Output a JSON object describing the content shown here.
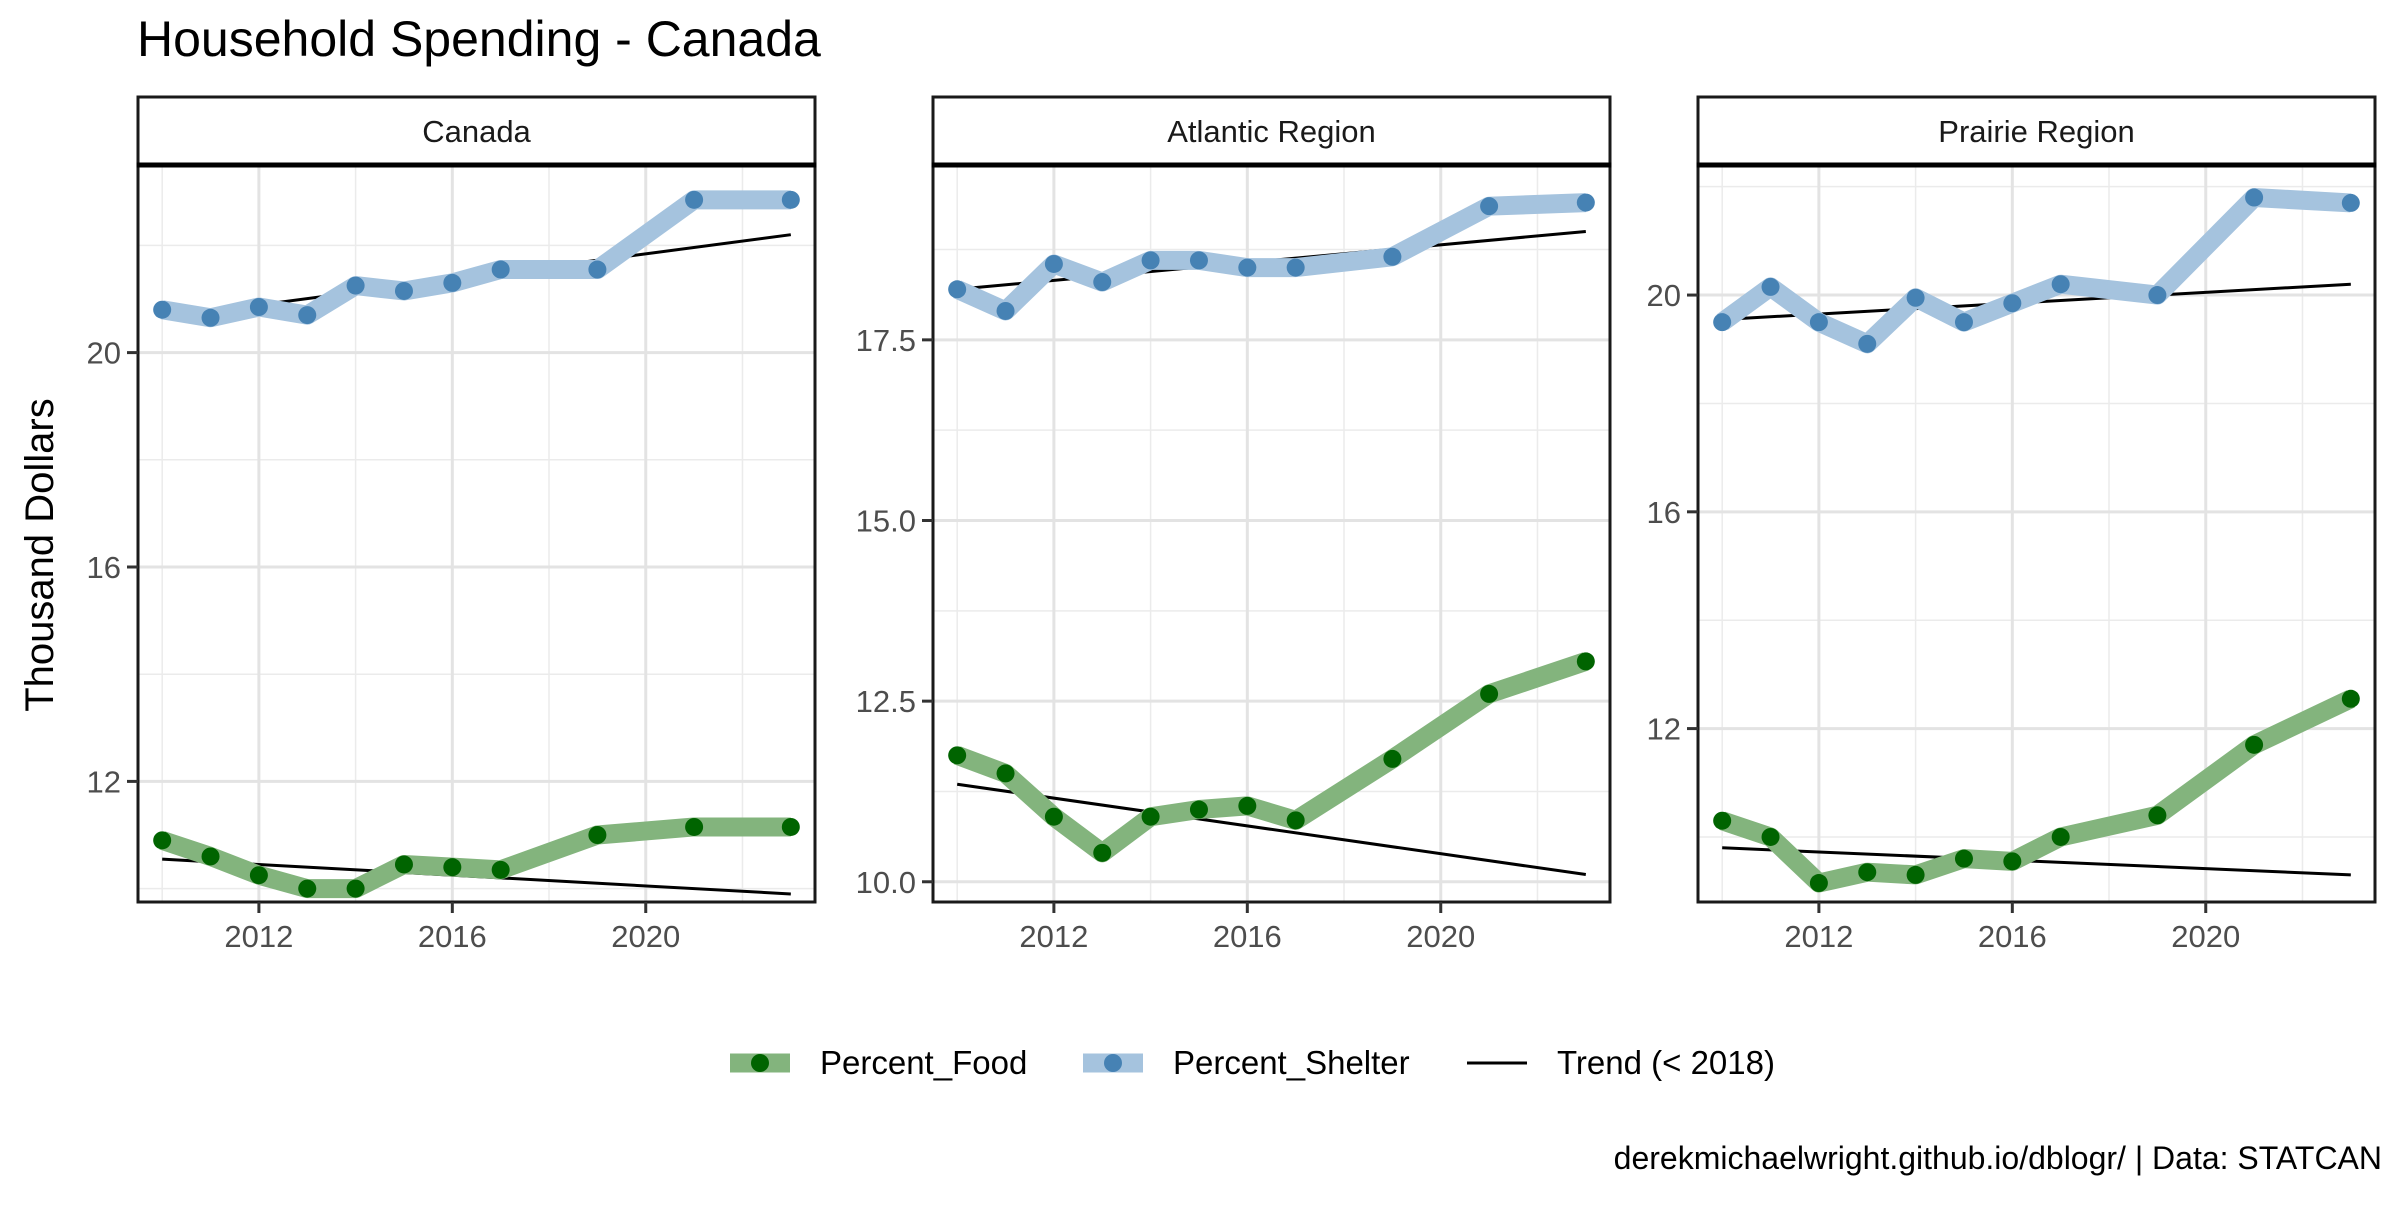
{
  "title": "Household Spending - Canada",
  "ylabel": "Thousand Dollars",
  "caption": "derekmichaelwright.github.io/dblogr/ | Data: STATCAN",
  "colors": {
    "food": "#006400",
    "food_band": "#83b47d",
    "shelter": "#4682b4",
    "shelter_band": "#a5c3de",
    "trend": "#000000"
  },
  "chart_data": {
    "type": "line",
    "xlim": [
      2009.5,
      2023.5
    ],
    "xticks": [
      2012,
      2016,
      2020
    ],
    "x": [
      2010,
      2011,
      2012,
      2013,
      2014,
      2015,
      2016,
      2017,
      2019,
      2021,
      2023
    ],
    "legend": {
      "placement": "bottom",
      "entries": [
        {
          "key": "food",
          "label": "Percent_Food"
        },
        {
          "key": "shelter",
          "label": "Percent_Shelter"
        },
        {
          "key": "trend",
          "label": "Trend (< 2018)"
        }
      ]
    },
    "panels": [
      {
        "name": "Canada",
        "ylim": [
          9.75,
          23.5
        ],
        "yticks": [
          12,
          16,
          20
        ],
        "series": [
          {
            "key": "food",
            "values": [
              10.9,
              10.6,
              10.25,
              10.0,
              10.0,
              10.45,
              10.4,
              10.35,
              11.0,
              11.15,
              11.15
            ]
          },
          {
            "key": "shelter",
            "values": [
              20.8,
              20.65,
              20.85,
              20.7,
              21.25,
              21.15,
              21.3,
              21.55,
              21.55,
              22.85,
              22.85
            ]
          }
        ],
        "trends": [
          {
            "key": "food",
            "x": [
              2010,
              2023
            ],
            "values": [
              10.55,
              9.9
            ]
          },
          {
            "key": "shelter",
            "x": [
              2010,
              2023
            ],
            "values": [
              20.65,
              22.2
            ]
          }
        ]
      },
      {
        "name": "Atlantic Region",
        "ylim": [
          9.72,
          19.92
        ],
        "yticks": [
          10.0,
          12.5,
          15.0,
          17.5
        ],
        "series": [
          {
            "key": "food",
            "values": [
              11.75,
              11.5,
              10.9,
              10.4,
              10.9,
              11.0,
              11.05,
              10.85,
              11.7,
              12.6,
              13.05
            ]
          },
          {
            "key": "shelter",
            "values": [
              18.2,
              17.9,
              18.55,
              18.3,
              18.6,
              18.6,
              18.5,
              18.5,
              18.65,
              19.35,
              19.4
            ]
          }
        ],
        "trends": [
          {
            "key": "food",
            "x": [
              2010,
              2023
            ],
            "values": [
              11.35,
              10.1
            ]
          },
          {
            "key": "shelter",
            "x": [
              2010,
              2023
            ],
            "values": [
              18.2,
              19.0
            ]
          }
        ]
      },
      {
        "name": "Prairie Region",
        "ylim": [
          8.8,
          22.4
        ],
        "yticks": [
          12,
          16,
          20
        ],
        "series": [
          {
            "key": "food",
            "values": [
              10.3,
              10.0,
              9.15,
              9.35,
              9.3,
              9.6,
              9.55,
              10.0,
              10.4,
              11.7,
              12.55
            ]
          },
          {
            "key": "shelter",
            "values": [
              19.5,
              20.15,
              19.5,
              19.1,
              19.95,
              19.5,
              19.85,
              20.2,
              20.0,
              21.8,
              21.7
            ]
          }
        ],
        "trends": [
          {
            "key": "food",
            "x": [
              2010,
              2023
            ],
            "values": [
              9.8,
              9.3
            ]
          },
          {
            "key": "shelter",
            "x": [
              2010,
              2023
            ],
            "values": [
              19.55,
              20.2
            ]
          }
        ]
      }
    ]
  }
}
